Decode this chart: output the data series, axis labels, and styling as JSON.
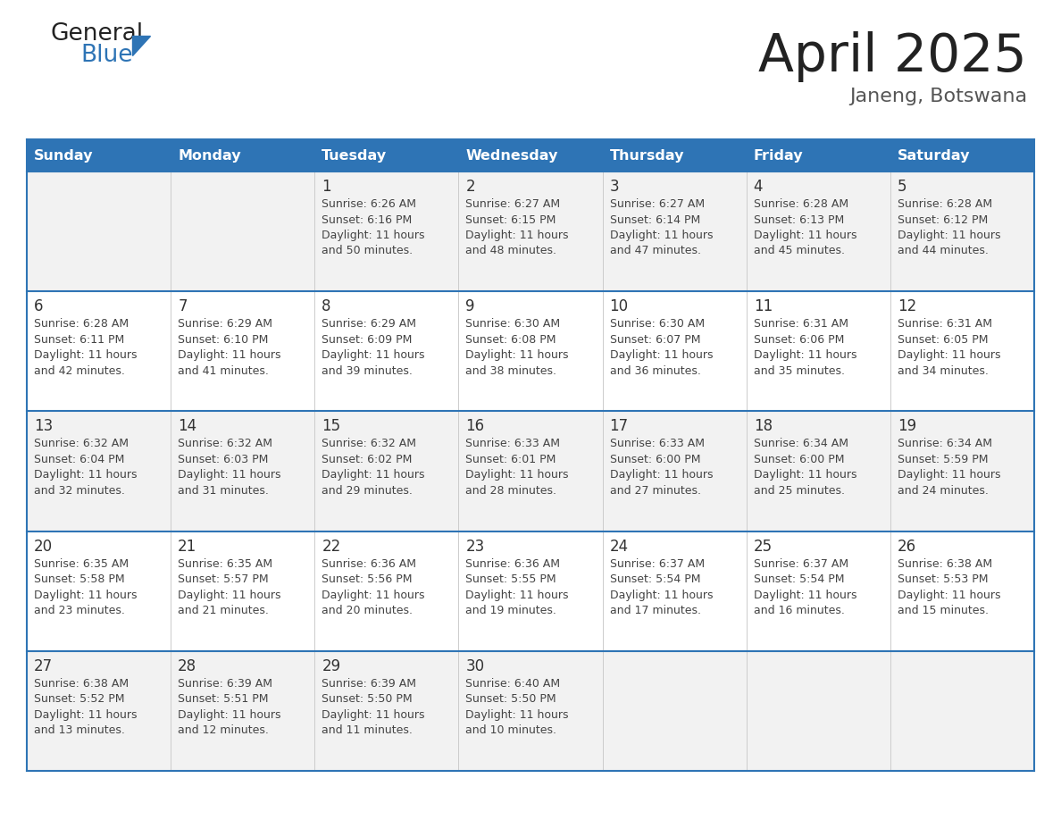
{
  "title": "April 2025",
  "subtitle": "Janeng, Botswana",
  "days_of_week": [
    "Sunday",
    "Monday",
    "Tuesday",
    "Wednesday",
    "Thursday",
    "Friday",
    "Saturday"
  ],
  "header_bg": "#2E74B5",
  "header_text": "#FFFFFF",
  "row_bg_odd": "#F2F2F2",
  "row_bg_even": "#FFFFFF",
  "day_text_color": "#333333",
  "info_text_color": "#444444",
  "title_color": "#222222",
  "subtitle_color": "#555555",
  "line_color": "#2E74B5",
  "logo_black": "#222222",
  "logo_blue": "#2E74B5",
  "calendar_data": [
    [
      {
        "day": "",
        "sunrise": "",
        "sunset": "",
        "daylight": ""
      },
      {
        "day": "",
        "sunrise": "",
        "sunset": "",
        "daylight": ""
      },
      {
        "day": "1",
        "sunrise": "6:26 AM",
        "sunset": "6:16 PM",
        "daylight": "11 hours and 50 minutes."
      },
      {
        "day": "2",
        "sunrise": "6:27 AM",
        "sunset": "6:15 PM",
        "daylight": "11 hours and 48 minutes."
      },
      {
        "day": "3",
        "sunrise": "6:27 AM",
        "sunset": "6:14 PM",
        "daylight": "11 hours and 47 minutes."
      },
      {
        "day": "4",
        "sunrise": "6:28 AM",
        "sunset": "6:13 PM",
        "daylight": "11 hours and 45 minutes."
      },
      {
        "day": "5",
        "sunrise": "6:28 AM",
        "sunset": "6:12 PM",
        "daylight": "11 hours and 44 minutes."
      }
    ],
    [
      {
        "day": "6",
        "sunrise": "6:28 AM",
        "sunset": "6:11 PM",
        "daylight": "11 hours and 42 minutes."
      },
      {
        "day": "7",
        "sunrise": "6:29 AM",
        "sunset": "6:10 PM",
        "daylight": "11 hours and 41 minutes."
      },
      {
        "day": "8",
        "sunrise": "6:29 AM",
        "sunset": "6:09 PM",
        "daylight": "11 hours and 39 minutes."
      },
      {
        "day": "9",
        "sunrise": "6:30 AM",
        "sunset": "6:08 PM",
        "daylight": "11 hours and 38 minutes."
      },
      {
        "day": "10",
        "sunrise": "6:30 AM",
        "sunset": "6:07 PM",
        "daylight": "11 hours and 36 minutes."
      },
      {
        "day": "11",
        "sunrise": "6:31 AM",
        "sunset": "6:06 PM",
        "daylight": "11 hours and 35 minutes."
      },
      {
        "day": "12",
        "sunrise": "6:31 AM",
        "sunset": "6:05 PM",
        "daylight": "11 hours and 34 minutes."
      }
    ],
    [
      {
        "day": "13",
        "sunrise": "6:32 AM",
        "sunset": "6:04 PM",
        "daylight": "11 hours and 32 minutes."
      },
      {
        "day": "14",
        "sunrise": "6:32 AM",
        "sunset": "6:03 PM",
        "daylight": "11 hours and 31 minutes."
      },
      {
        "day": "15",
        "sunrise": "6:32 AM",
        "sunset": "6:02 PM",
        "daylight": "11 hours and 29 minutes."
      },
      {
        "day": "16",
        "sunrise": "6:33 AM",
        "sunset": "6:01 PM",
        "daylight": "11 hours and 28 minutes."
      },
      {
        "day": "17",
        "sunrise": "6:33 AM",
        "sunset": "6:00 PM",
        "daylight": "11 hours and 27 minutes."
      },
      {
        "day": "18",
        "sunrise": "6:34 AM",
        "sunset": "6:00 PM",
        "daylight": "11 hours and 25 minutes."
      },
      {
        "day": "19",
        "sunrise": "6:34 AM",
        "sunset": "5:59 PM",
        "daylight": "11 hours and 24 minutes."
      }
    ],
    [
      {
        "day": "20",
        "sunrise": "6:35 AM",
        "sunset": "5:58 PM",
        "daylight": "11 hours and 23 minutes."
      },
      {
        "day": "21",
        "sunrise": "6:35 AM",
        "sunset": "5:57 PM",
        "daylight": "11 hours and 21 minutes."
      },
      {
        "day": "22",
        "sunrise": "6:36 AM",
        "sunset": "5:56 PM",
        "daylight": "11 hours and 20 minutes."
      },
      {
        "day": "23",
        "sunrise": "6:36 AM",
        "sunset": "5:55 PM",
        "daylight": "11 hours and 19 minutes."
      },
      {
        "day": "24",
        "sunrise": "6:37 AM",
        "sunset": "5:54 PM",
        "daylight": "11 hours and 17 minutes."
      },
      {
        "day": "25",
        "sunrise": "6:37 AM",
        "sunset": "5:54 PM",
        "daylight": "11 hours and 16 minutes."
      },
      {
        "day": "26",
        "sunrise": "6:38 AM",
        "sunset": "5:53 PM",
        "daylight": "11 hours and 15 minutes."
      }
    ],
    [
      {
        "day": "27",
        "sunrise": "6:38 AM",
        "sunset": "5:52 PM",
        "daylight": "11 hours and 13 minutes."
      },
      {
        "day": "28",
        "sunrise": "6:39 AM",
        "sunset": "5:51 PM",
        "daylight": "11 hours and 12 minutes."
      },
      {
        "day": "29",
        "sunrise": "6:39 AM",
        "sunset": "5:50 PM",
        "daylight": "11 hours and 11 minutes."
      },
      {
        "day": "30",
        "sunrise": "6:40 AM",
        "sunset": "5:50 PM",
        "daylight": "11 hours and 10 minutes."
      },
      {
        "day": "",
        "sunrise": "",
        "sunset": "",
        "daylight": ""
      },
      {
        "day": "",
        "sunrise": "",
        "sunset": "",
        "daylight": ""
      },
      {
        "day": "",
        "sunrise": "",
        "sunset": "",
        "daylight": ""
      }
    ]
  ]
}
